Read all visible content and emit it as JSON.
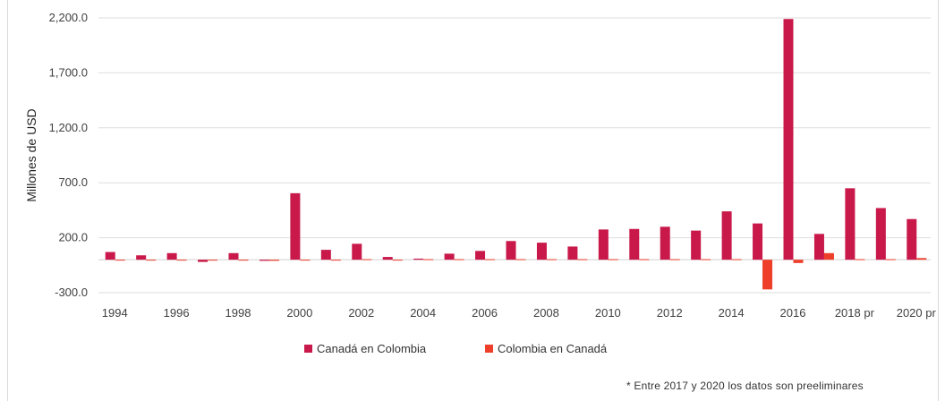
{
  "chart_data": {
    "type": "bar",
    "title": "",
    "ylabel": "Millones de USD",
    "xlabel": "",
    "ylim": [
      -300,
      2200
    ],
    "yticks": [
      -300,
      200,
      700,
      1200,
      1700,
      2200
    ],
    "ytick_labels": [
      "-300.0",
      "200.0",
      "700.0",
      "1,200.0",
      "1,700.0",
      "2,200.0"
    ],
    "categories": [
      "1994",
      "1995",
      "1996",
      "1997",
      "1998",
      "1999",
      "2000",
      "2001",
      "2002",
      "2003",
      "2004",
      "2005",
      "2006",
      "2007",
      "2008",
      "2009",
      "2010",
      "2011",
      "2012",
      "2013",
      "2014",
      "2015",
      "2016",
      "2017",
      "2018 pr",
      "2019 pr",
      "2020 pr"
    ],
    "xtick_labels": [
      "1994",
      "",
      "1996",
      "",
      "1998",
      "",
      "2000",
      "",
      "2002",
      "",
      "2004",
      "",
      "2006",
      "",
      "2008",
      "",
      "2010",
      "",
      "2012",
      "",
      "2014",
      "",
      "2016",
      "",
      "2018 pr",
      "",
      "2020 pr"
    ],
    "series": [
      {
        "name": "Canadá en Colombia",
        "color": "#c9184a",
        "values": [
          70,
          40,
          60,
          -20,
          60,
          -10,
          605,
          90,
          145,
          25,
          10,
          55,
          80,
          170,
          155,
          120,
          275,
          280,
          300,
          265,
          440,
          330,
          2190,
          235,
          650,
          470,
          370
        ]
      },
      {
        "name": "Colombia en Canadá",
        "color": "#ee3f2a",
        "values": [
          0,
          0,
          0,
          0,
          0,
          -10,
          0,
          0,
          5,
          0,
          5,
          5,
          5,
          5,
          5,
          5,
          5,
          5,
          5,
          5,
          5,
          -270,
          -30,
          60,
          5,
          5,
          15
        ]
      }
    ],
    "legend_position": "bottom",
    "grid": true,
    "footnote": "* Entre 2017 y 2020 los datos son preeliminares"
  }
}
